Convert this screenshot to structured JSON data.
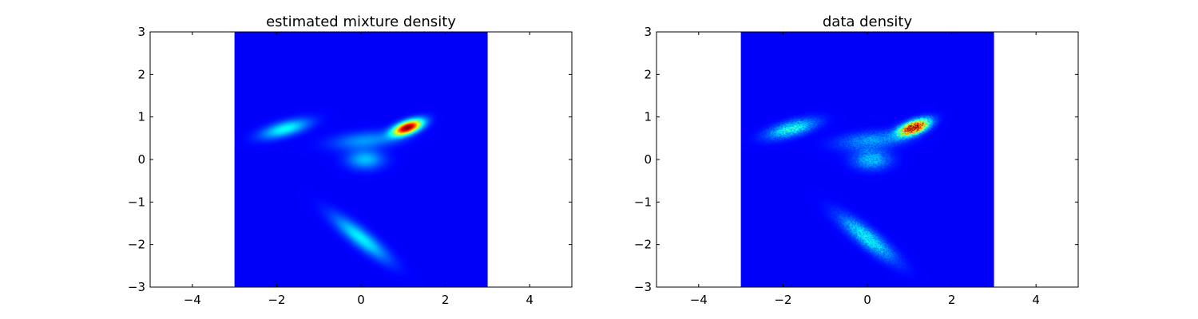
{
  "chart_data": [
    {
      "type": "heatmap",
      "title": "estimated mixture density",
      "xlabel": "",
      "ylabel": "",
      "xlim": [
        -5,
        5
      ],
      "ylim": [
        -3,
        3
      ],
      "x_ticks": [
        -4,
        -2,
        0,
        2,
        4
      ],
      "x_tick_labels": [
        "−4",
        "−2",
        "0",
        "2",
        "4"
      ],
      "y_ticks": [
        -3,
        -2,
        -1,
        0,
        1,
        2,
        3
      ],
      "y_tick_labels": [
        "−3",
        "−2",
        "−1",
        "0",
        "1",
        "2",
        "3"
      ],
      "image_extent": {
        "x": [
          -3,
          3
        ],
        "y": [
          -3,
          3
        ]
      },
      "colormap": "jet",
      "background_color": "#00007f",
      "grid": false,
      "density_components": [
        {
          "cx": 1.1,
          "cy": 0.75,
          "sx": 0.25,
          "sy": 0.1,
          "angle_deg": 20,
          "peak": 1.0
        },
        {
          "cx": -1.8,
          "cy": 0.72,
          "sx": 0.4,
          "sy": 0.12,
          "angle_deg": 15,
          "peak": 0.3
        },
        {
          "cx": 0.1,
          "cy": 0.45,
          "sx": 0.55,
          "sy": 0.14,
          "angle_deg": 5,
          "peak": 0.17
        },
        {
          "cx": 0.1,
          "cy": 0.0,
          "sx": 0.3,
          "sy": 0.16,
          "angle_deg": 0,
          "peak": 0.22
        },
        {
          "cx": 0.0,
          "cy": -1.85,
          "sx": 0.55,
          "sy": 0.14,
          "angle_deg": -38,
          "peak": 0.28
        }
      ]
    },
    {
      "type": "heatmap",
      "title": "data density",
      "xlabel": "",
      "ylabel": "",
      "xlim": [
        -5,
        5
      ],
      "ylim": [
        -3,
        3
      ],
      "x_ticks": [
        -4,
        -2,
        0,
        2,
        4
      ],
      "x_tick_labels": [
        "−4",
        "−2",
        "0",
        "2",
        "4"
      ],
      "y_ticks": [
        -3,
        -2,
        -1,
        0,
        1,
        2,
        3
      ],
      "y_tick_labels": [
        "−3",
        "−2",
        "−1",
        "0",
        "1",
        "2",
        "3"
      ],
      "image_extent": {
        "x": [
          -3,
          3
        ],
        "y": [
          -3,
          3
        ]
      },
      "colormap": "jet",
      "background_color": "#00007f",
      "grid": false,
      "density_components": [
        {
          "cx": 1.1,
          "cy": 0.75,
          "sx": 0.25,
          "sy": 0.1,
          "angle_deg": 20,
          "peak": 1.0
        },
        {
          "cx": -1.8,
          "cy": 0.72,
          "sx": 0.4,
          "sy": 0.12,
          "angle_deg": 15,
          "peak": 0.3
        },
        {
          "cx": 0.1,
          "cy": 0.45,
          "sx": 0.55,
          "sy": 0.14,
          "angle_deg": 5,
          "peak": 0.17
        },
        {
          "cx": 0.1,
          "cy": 0.0,
          "sx": 0.3,
          "sy": 0.16,
          "angle_deg": 0,
          "peak": 0.22
        },
        {
          "cx": 0.0,
          "cy": -1.85,
          "sx": 0.55,
          "sy": 0.14,
          "angle_deg": -38,
          "peak": 0.28
        }
      ]
    }
  ]
}
